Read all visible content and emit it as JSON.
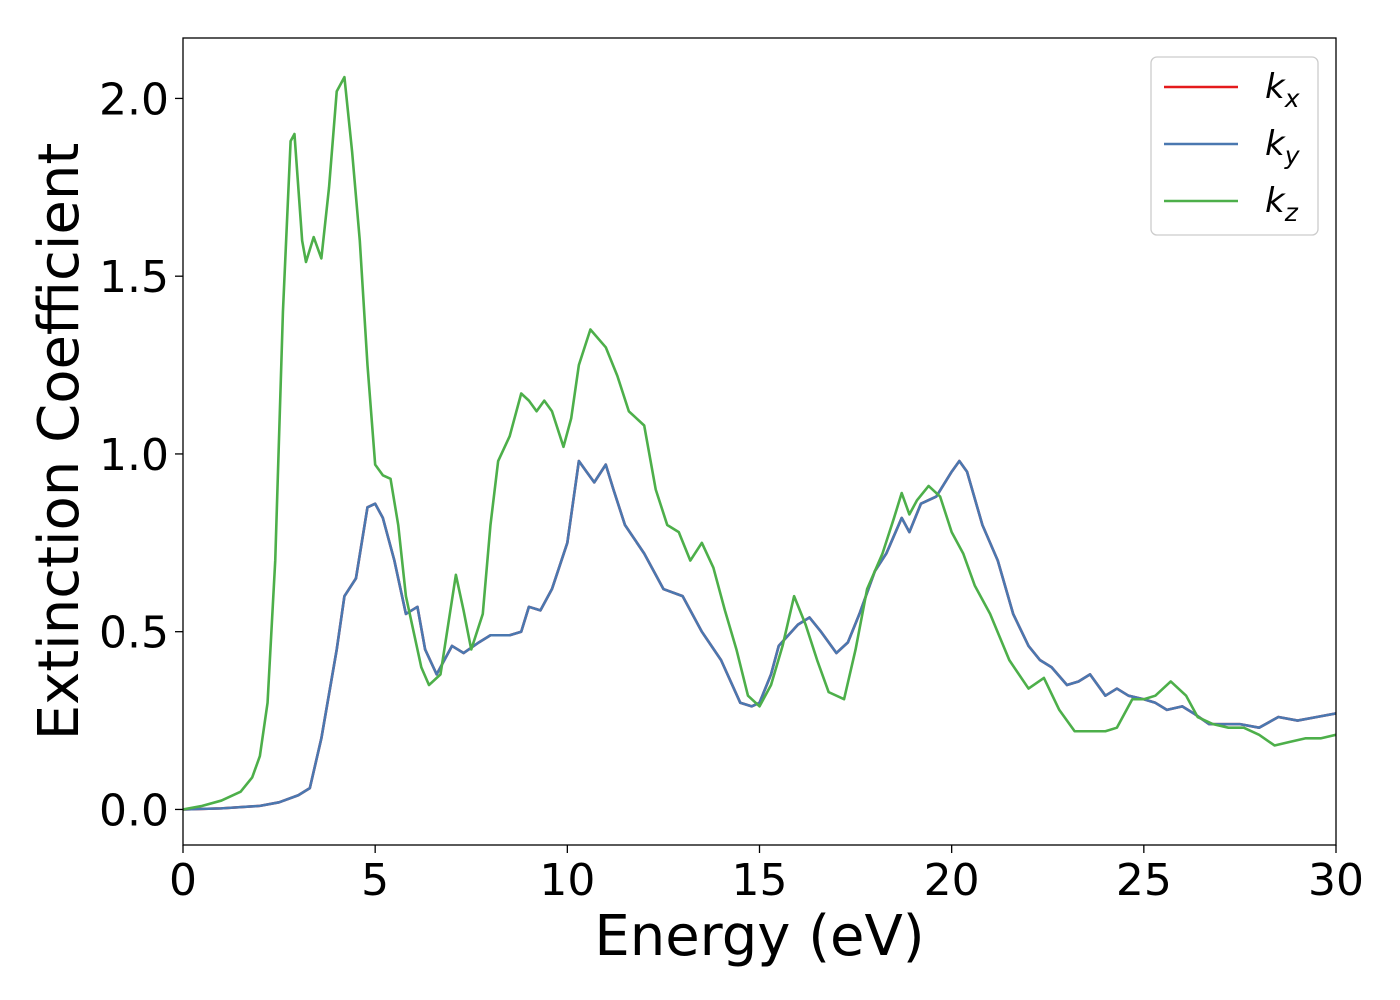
{
  "chart_data": {
    "type": "line",
    "xlabel": "Energy (eV)",
    "ylabel": "Extinction Coefficient",
    "xlim": [
      0,
      30
    ],
    "ylim": [
      -0.1,
      2.17
    ],
    "xticks": [
      0,
      5,
      10,
      15,
      20,
      25,
      30
    ],
    "xtick_labels": [
      "0",
      "5",
      "10",
      "15",
      "20",
      "25",
      "30"
    ],
    "yticks": [
      0.0,
      0.5,
      1.0,
      1.5,
      2.0
    ],
    "ytick_labels": [
      "0.0",
      "0.5",
      "1.0",
      "1.5",
      "2.0"
    ],
    "grid": false,
    "legend_position": "top-right",
    "series": [
      {
        "name": "k",
        "subscript": "x",
        "color": "#e41a1c",
        "points": [
          [
            0,
            0
          ],
          [
            1,
            0.003
          ],
          [
            2,
            0.01
          ],
          [
            2.5,
            0.02
          ],
          [
            3,
            0.04
          ],
          [
            3.3,
            0.06
          ],
          [
            3.6,
            0.2
          ],
          [
            4,
            0.45
          ],
          [
            4.2,
            0.6
          ],
          [
            4.5,
            0.65
          ],
          [
            4.8,
            0.85
          ],
          [
            5.0,
            0.86
          ],
          [
            5.2,
            0.82
          ],
          [
            5.5,
            0.7
          ],
          [
            5.8,
            0.55
          ],
          [
            6.1,
            0.57
          ],
          [
            6.3,
            0.45
          ],
          [
            6.6,
            0.38
          ],
          [
            7.0,
            0.46
          ],
          [
            7.3,
            0.44
          ],
          [
            7.7,
            0.47
          ],
          [
            8.0,
            0.49
          ],
          [
            8.5,
            0.49
          ],
          [
            8.8,
            0.5
          ],
          [
            9.0,
            0.57
          ],
          [
            9.3,
            0.56
          ],
          [
            9.6,
            0.62
          ],
          [
            10.0,
            0.75
          ],
          [
            10.3,
            0.98
          ],
          [
            10.5,
            0.95
          ],
          [
            10.7,
            0.92
          ],
          [
            11.0,
            0.97
          ],
          [
            11.2,
            0.9
          ],
          [
            11.5,
            0.8
          ],
          [
            12.0,
            0.72
          ],
          [
            12.5,
            0.62
          ],
          [
            13.0,
            0.6
          ],
          [
            13.5,
            0.5
          ],
          [
            14.0,
            0.42
          ],
          [
            14.5,
            0.3
          ],
          [
            14.8,
            0.29
          ],
          [
            15.0,
            0.3
          ],
          [
            15.3,
            0.38
          ],
          [
            15.5,
            0.46
          ],
          [
            16.0,
            0.52
          ],
          [
            16.3,
            0.54
          ],
          [
            16.6,
            0.5
          ],
          [
            17.0,
            0.44
          ],
          [
            17.3,
            0.47
          ],
          [
            17.6,
            0.55
          ],
          [
            18.0,
            0.67
          ],
          [
            18.3,
            0.72
          ],
          [
            18.7,
            0.82
          ],
          [
            18.9,
            0.78
          ],
          [
            19.2,
            0.86
          ],
          [
            19.6,
            0.88
          ],
          [
            20.0,
            0.95
          ],
          [
            20.2,
            0.98
          ],
          [
            20.4,
            0.95
          ],
          [
            20.8,
            0.8
          ],
          [
            21.2,
            0.7
          ],
          [
            21.6,
            0.55
          ],
          [
            22.0,
            0.46
          ],
          [
            22.3,
            0.42
          ],
          [
            22.6,
            0.4
          ],
          [
            23.0,
            0.35
          ],
          [
            23.3,
            0.36
          ],
          [
            23.6,
            0.38
          ],
          [
            24.0,
            0.32
          ],
          [
            24.3,
            0.34
          ],
          [
            24.6,
            0.32
          ],
          [
            25.0,
            0.31
          ],
          [
            25.3,
            0.3
          ],
          [
            25.6,
            0.28
          ],
          [
            26.0,
            0.29
          ],
          [
            26.3,
            0.27
          ],
          [
            26.7,
            0.24
          ],
          [
            27.0,
            0.24
          ],
          [
            27.5,
            0.24
          ],
          [
            28.0,
            0.23
          ],
          [
            28.5,
            0.26
          ],
          [
            29.0,
            0.25
          ],
          [
            29.5,
            0.26
          ],
          [
            30.0,
            0.27
          ]
        ]
      },
      {
        "name": "k",
        "subscript": "y",
        "color": "#4a78b0",
        "points": [
          [
            0,
            0
          ],
          [
            1,
            0.003
          ],
          [
            2,
            0.01
          ],
          [
            2.5,
            0.02
          ],
          [
            3,
            0.04
          ],
          [
            3.3,
            0.06
          ],
          [
            3.6,
            0.2
          ],
          [
            4,
            0.45
          ],
          [
            4.2,
            0.6
          ],
          [
            4.5,
            0.65
          ],
          [
            4.8,
            0.85
          ],
          [
            5.0,
            0.86
          ],
          [
            5.2,
            0.82
          ],
          [
            5.5,
            0.7
          ],
          [
            5.8,
            0.55
          ],
          [
            6.1,
            0.57
          ],
          [
            6.3,
            0.45
          ],
          [
            6.6,
            0.38
          ],
          [
            7.0,
            0.46
          ],
          [
            7.3,
            0.44
          ],
          [
            7.7,
            0.47
          ],
          [
            8.0,
            0.49
          ],
          [
            8.5,
            0.49
          ],
          [
            8.8,
            0.5
          ],
          [
            9.0,
            0.57
          ],
          [
            9.3,
            0.56
          ],
          [
            9.6,
            0.62
          ],
          [
            10.0,
            0.75
          ],
          [
            10.3,
            0.98
          ],
          [
            10.5,
            0.95
          ],
          [
            10.7,
            0.92
          ],
          [
            11.0,
            0.97
          ],
          [
            11.2,
            0.9
          ],
          [
            11.5,
            0.8
          ],
          [
            12.0,
            0.72
          ],
          [
            12.5,
            0.62
          ],
          [
            13.0,
            0.6
          ],
          [
            13.5,
            0.5
          ],
          [
            14.0,
            0.42
          ],
          [
            14.5,
            0.3
          ],
          [
            14.8,
            0.29
          ],
          [
            15.0,
            0.3
          ],
          [
            15.3,
            0.38
          ],
          [
            15.5,
            0.46
          ],
          [
            16.0,
            0.52
          ],
          [
            16.3,
            0.54
          ],
          [
            16.6,
            0.5
          ],
          [
            17.0,
            0.44
          ],
          [
            17.3,
            0.47
          ],
          [
            17.6,
            0.55
          ],
          [
            18.0,
            0.67
          ],
          [
            18.3,
            0.72
          ],
          [
            18.7,
            0.82
          ],
          [
            18.9,
            0.78
          ],
          [
            19.2,
            0.86
          ],
          [
            19.6,
            0.88
          ],
          [
            20.0,
            0.95
          ],
          [
            20.2,
            0.98
          ],
          [
            20.4,
            0.95
          ],
          [
            20.8,
            0.8
          ],
          [
            21.2,
            0.7
          ],
          [
            21.6,
            0.55
          ],
          [
            22.0,
            0.46
          ],
          [
            22.3,
            0.42
          ],
          [
            22.6,
            0.4
          ],
          [
            23.0,
            0.35
          ],
          [
            23.3,
            0.36
          ],
          [
            23.6,
            0.38
          ],
          [
            24.0,
            0.32
          ],
          [
            24.3,
            0.34
          ],
          [
            24.6,
            0.32
          ],
          [
            25.0,
            0.31
          ],
          [
            25.3,
            0.3
          ],
          [
            25.6,
            0.28
          ],
          [
            26.0,
            0.29
          ],
          [
            26.3,
            0.27
          ],
          [
            26.7,
            0.24
          ],
          [
            27.0,
            0.24
          ],
          [
            27.5,
            0.24
          ],
          [
            28.0,
            0.23
          ],
          [
            28.5,
            0.26
          ],
          [
            29.0,
            0.25
          ],
          [
            29.5,
            0.26
          ],
          [
            30.0,
            0.27
          ]
        ]
      },
      {
        "name": "k",
        "subscript": "z",
        "color": "#4daf4a",
        "points": [
          [
            0,
            0
          ],
          [
            0.5,
            0.01
          ],
          [
            1.0,
            0.025
          ],
          [
            1.5,
            0.05
          ],
          [
            1.8,
            0.09
          ],
          [
            2.0,
            0.15
          ],
          [
            2.2,
            0.3
          ],
          [
            2.4,
            0.7
          ],
          [
            2.6,
            1.4
          ],
          [
            2.8,
            1.88
          ],
          [
            2.9,
            1.9
          ],
          [
            3.1,
            1.6
          ],
          [
            3.2,
            1.54
          ],
          [
            3.4,
            1.61
          ],
          [
            3.6,
            1.55
          ],
          [
            3.8,
            1.75
          ],
          [
            4.0,
            2.02
          ],
          [
            4.2,
            2.06
          ],
          [
            4.4,
            1.85
          ],
          [
            4.6,
            1.6
          ],
          [
            4.8,
            1.25
          ],
          [
            5.0,
            0.97
          ],
          [
            5.2,
            0.94
          ],
          [
            5.4,
            0.93
          ],
          [
            5.6,
            0.8
          ],
          [
            5.8,
            0.6
          ],
          [
            6.0,
            0.5
          ],
          [
            6.2,
            0.4
          ],
          [
            6.4,
            0.35
          ],
          [
            6.7,
            0.38
          ],
          [
            6.9,
            0.52
          ],
          [
            7.1,
            0.66
          ],
          [
            7.3,
            0.56
          ],
          [
            7.5,
            0.45
          ],
          [
            7.8,
            0.55
          ],
          [
            8.0,
            0.8
          ],
          [
            8.2,
            0.98
          ],
          [
            8.5,
            1.05
          ],
          [
            8.8,
            1.17
          ],
          [
            9.0,
            1.15
          ],
          [
            9.2,
            1.12
          ],
          [
            9.4,
            1.15
          ],
          [
            9.6,
            1.12
          ],
          [
            9.9,
            1.02
          ],
          [
            10.1,
            1.1
          ],
          [
            10.3,
            1.25
          ],
          [
            10.6,
            1.35
          ],
          [
            11.0,
            1.3
          ],
          [
            11.3,
            1.22
          ],
          [
            11.6,
            1.12
          ],
          [
            12.0,
            1.08
          ],
          [
            12.3,
            0.9
          ],
          [
            12.6,
            0.8
          ],
          [
            12.9,
            0.78
          ],
          [
            13.2,
            0.7
          ],
          [
            13.5,
            0.75
          ],
          [
            13.8,
            0.68
          ],
          [
            14.1,
            0.56
          ],
          [
            14.4,
            0.45
          ],
          [
            14.7,
            0.32
          ],
          [
            15.0,
            0.29
          ],
          [
            15.3,
            0.35
          ],
          [
            15.6,
            0.46
          ],
          [
            15.9,
            0.6
          ],
          [
            16.2,
            0.52
          ],
          [
            16.5,
            0.42
          ],
          [
            16.8,
            0.33
          ],
          [
            17.2,
            0.31
          ],
          [
            17.5,
            0.45
          ],
          [
            17.8,
            0.62
          ],
          [
            18.2,
            0.72
          ],
          [
            18.5,
            0.82
          ],
          [
            18.7,
            0.89
          ],
          [
            18.9,
            0.83
          ],
          [
            19.1,
            0.87
          ],
          [
            19.4,
            0.91
          ],
          [
            19.7,
            0.88
          ],
          [
            20.0,
            0.78
          ],
          [
            20.3,
            0.72
          ],
          [
            20.6,
            0.63
          ],
          [
            21.0,
            0.55
          ],
          [
            21.5,
            0.42
          ],
          [
            22.0,
            0.34
          ],
          [
            22.4,
            0.37
          ],
          [
            22.8,
            0.28
          ],
          [
            23.2,
            0.22
          ],
          [
            23.6,
            0.22
          ],
          [
            24.0,
            0.22
          ],
          [
            24.3,
            0.23
          ],
          [
            24.7,
            0.31
          ],
          [
            25.0,
            0.31
          ],
          [
            25.3,
            0.32
          ],
          [
            25.7,
            0.36
          ],
          [
            26.1,
            0.32
          ],
          [
            26.4,
            0.26
          ],
          [
            26.8,
            0.24
          ],
          [
            27.2,
            0.23
          ],
          [
            27.6,
            0.23
          ],
          [
            28.0,
            0.21
          ],
          [
            28.4,
            0.18
          ],
          [
            28.8,
            0.19
          ],
          [
            29.2,
            0.2
          ],
          [
            29.6,
            0.2
          ],
          [
            30.0,
            0.21
          ]
        ]
      }
    ]
  }
}
